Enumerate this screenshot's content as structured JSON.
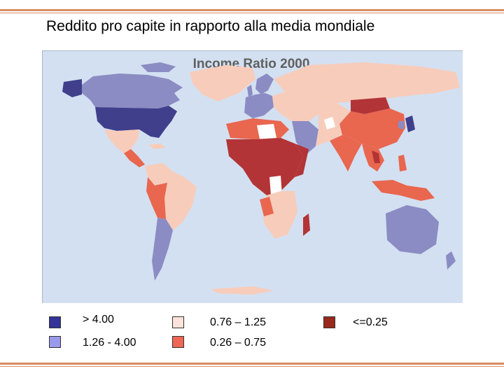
{
  "slide": {
    "title": "Reddito pro capite in rapporto alla media mondiale"
  },
  "map": {
    "heading": "Income Ratio 2000",
    "colors": {
      "ocean": "#d3e0f1",
      "very_high": "#3f3f8c",
      "high": "#8c8cc4",
      "middle": "#f8ccbb",
      "low": "#e9664f",
      "very_low": "#b23436",
      "no_data": "#ffffff"
    }
  },
  "legend": {
    "items": [
      {
        "label": "> 4.00",
        "color": "#333399"
      },
      {
        "label": "1.26 - 4.00",
        "color": "#9999ee"
      },
      {
        "label": "0.76 – 1.25",
        "color": "#fbe3dc"
      },
      {
        "label": "0.26 – 0.75",
        "color": "#ee6655"
      },
      {
        "label": "<=0.25",
        "color": "#99291a"
      }
    ]
  }
}
